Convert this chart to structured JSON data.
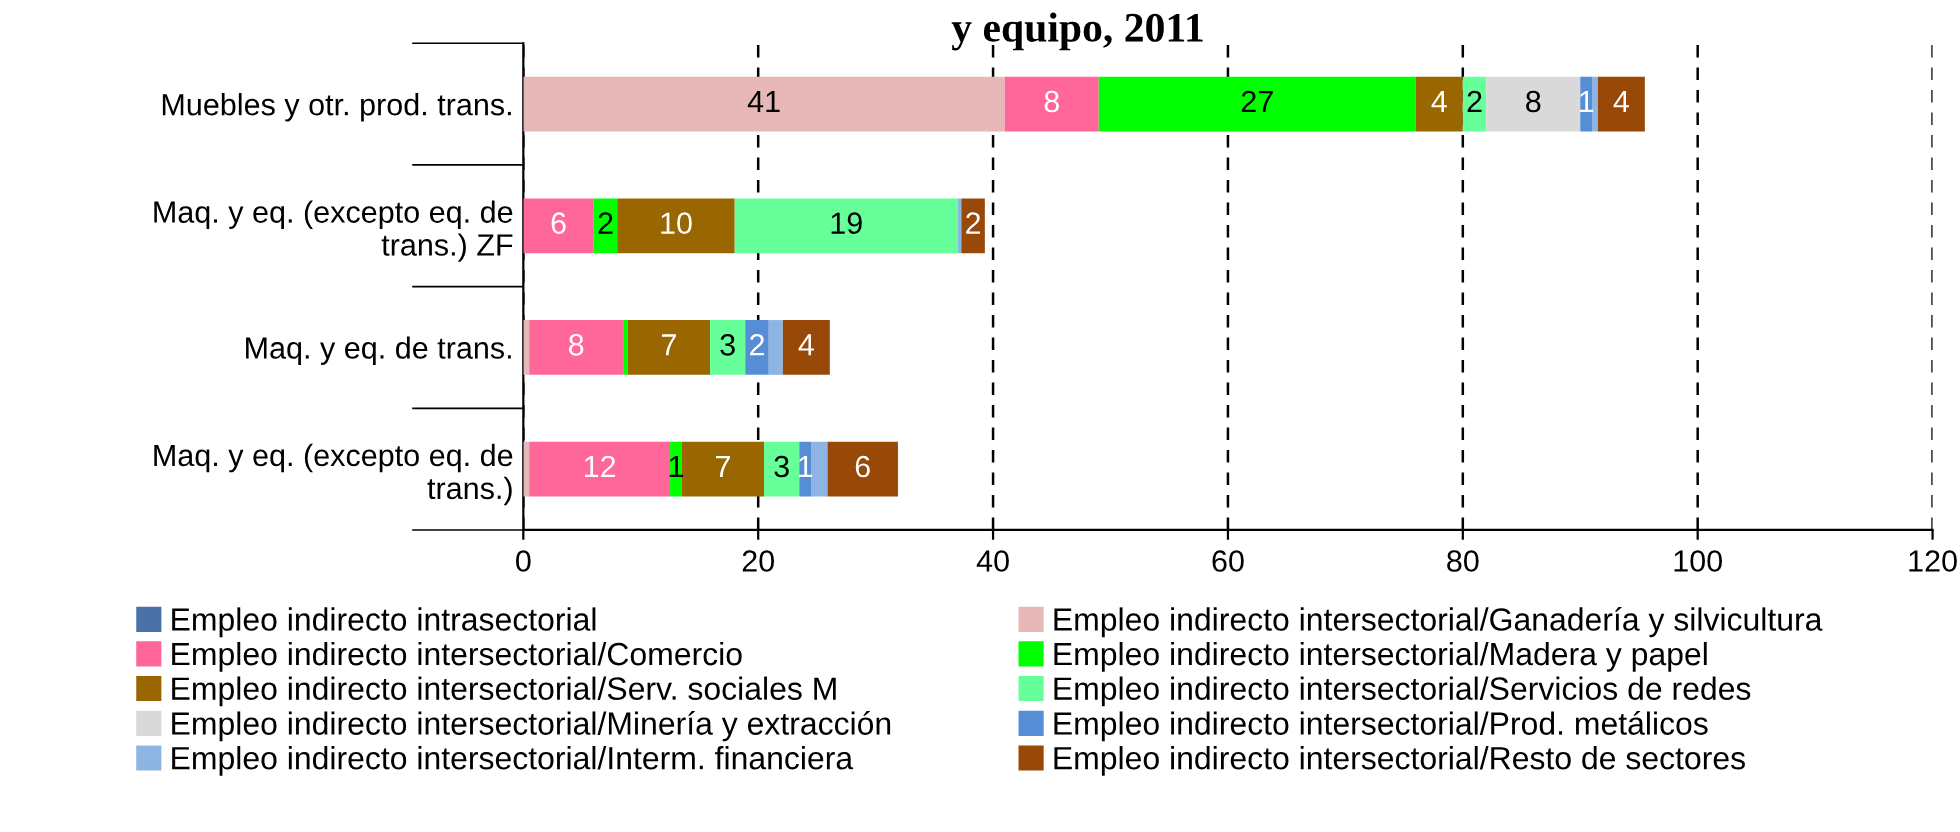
{
  "chart_data": {
    "type": "bar",
    "orientation": "horizontal",
    "stacked": true,
    "title": "y equipo, 2011",
    "categories": [
      "Muebles y otr. prod. trans.",
      "Maq. y eq. (excepto eq. de\ntrans.) ZF",
      "Maq. y eq. de trans.",
      "Maq. y eq. (excepto eq. de\ntrans.)"
    ],
    "series": [
      {
        "name": "Empleo indirecto intrasectorial",
        "color": "#4a72a8",
        "values": [
          0,
          0,
          0,
          0
        ],
        "value_labels": [
          null,
          null,
          null,
          null
        ]
      },
      {
        "name": "Empleo indirecto intersectorial/Ganadería y silvicultura",
        "color": "#e6b8b7",
        "values": [
          41,
          0,
          0.5,
          0.5
        ],
        "value_labels": [
          "41",
          null,
          null,
          null
        ]
      },
      {
        "name": "Empleo indirecto intersectorial/Comercio",
        "color": "#ff6699",
        "values": [
          8,
          6,
          8,
          12
        ],
        "value_labels": [
          "8",
          "6",
          "8",
          "12"
        ]
      },
      {
        "name": "Empleo indirecto intersectorial/Madera y papel",
        "color": "#00ff00",
        "values": [
          27,
          2,
          0.4,
          1
        ],
        "value_labels": [
          "27",
          "2",
          null,
          "1"
        ]
      },
      {
        "name": "Empleo indirecto intersectorial/Serv. sociales M",
        "color": "#996600",
        "values": [
          4,
          10,
          7,
          7
        ],
        "value_labels": [
          "4",
          "10",
          "7",
          "7"
        ]
      },
      {
        "name": "Empleo indirecto intersectorial/Servicios de redes",
        "color": "#66ff99",
        "values": [
          2,
          19,
          3,
          3
        ],
        "value_labels": [
          "2",
          "19",
          "3",
          "3"
        ]
      },
      {
        "name": "Empleo indirecto intersectorial/Minería y extracción",
        "color": "#d9d9d9",
        "values": [
          8,
          0,
          0,
          0
        ],
        "value_labels": [
          "8",
          null,
          null,
          null
        ]
      },
      {
        "name": "Empleo indirecto intersectorial/Prod. metálicos",
        "color": "#558ed5",
        "values": [
          1,
          0,
          2,
          1
        ],
        "value_labels": [
          "1",
          null,
          "2",
          "1"
        ]
      },
      {
        "name": "Empleo indirecto intersectorial/Interm. financiera",
        "color": "#8db4e2",
        "values": [
          0.5,
          0.3,
          1.2,
          1.4
        ],
        "value_labels": [
          null,
          null,
          null,
          null
        ]
      },
      {
        "name": "Empleo indirecto intersectorial/Resto de sectores",
        "color": "#984807",
        "values": [
          4,
          2,
          4,
          6
        ],
        "value_labels": [
          "4",
          "2",
          "4",
          "6"
        ]
      }
    ],
    "xlim": [
      0,
      120
    ],
    "xticks": [
      0,
      20,
      40,
      60,
      80,
      100,
      120
    ],
    "grid": "x",
    "legend": "bottom"
  }
}
